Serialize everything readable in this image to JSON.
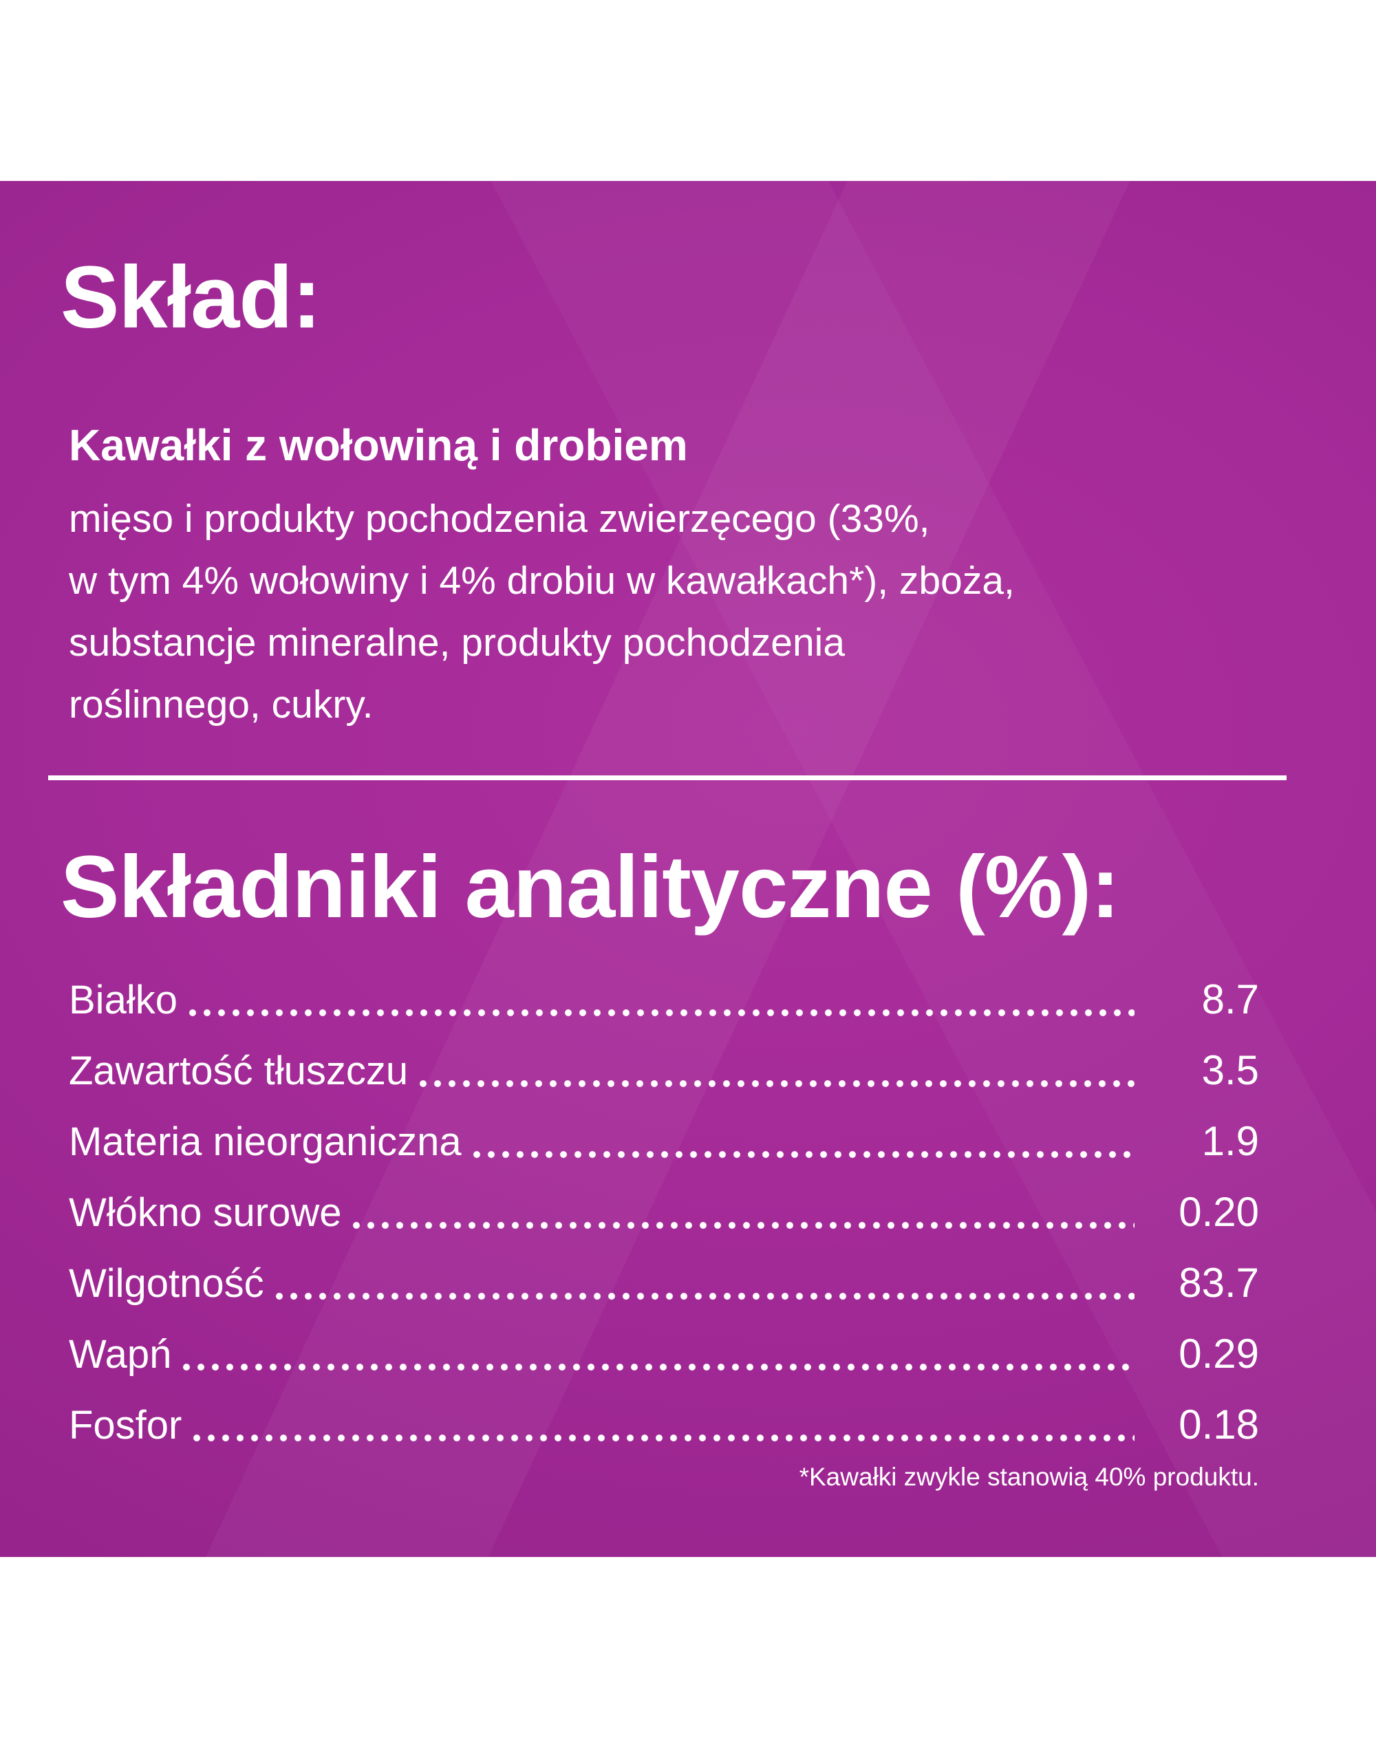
{
  "label": {
    "composition": {
      "title": "Skład:",
      "product_name": "Kawałki z wołowiną i drobiem",
      "ingredients_lines": [
        "mięso i produkty pochodzenia zwierzęcego (33%,",
        "w tym 4% wołowiny i 4% drobiu w kawałkach*), zboża,",
        "substancje mineralne, produkty pochodzenia",
        "roślinnego, cukry."
      ]
    },
    "analytical": {
      "title": "Składniki analityczne (%):",
      "rows": [
        {
          "label": "Białko",
          "value": "8.7"
        },
        {
          "label": "Zawartość tłuszczu",
          "value": "3.5"
        },
        {
          "label": "Materia nieorganiczna",
          "value": "1.9"
        },
        {
          "label": "Włókno surowe",
          "value": "0.20"
        },
        {
          "label": "Wilgotność",
          "value": "83.7"
        },
        {
          "label": "Wapń",
          "value": "0.29"
        },
        {
          "label": "Fosfor",
          "value": "0.18"
        }
      ]
    },
    "footnote": "*Kawałki zwykle stanowią 40% produktu.",
    "colors": {
      "panel_base": "#9c2691",
      "panel_highlight": "#ad309e",
      "panel_edge": "#8e2286",
      "text": "#ffffff",
      "page_background": "#ffffff"
    }
  }
}
